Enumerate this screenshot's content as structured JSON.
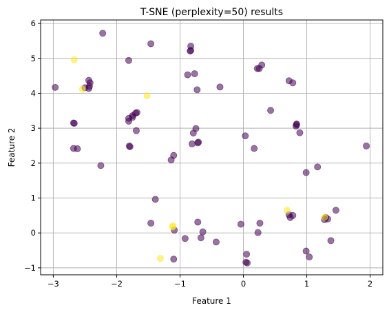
{
  "chart_data": {
    "type": "scatter",
    "title": "T-SNE (perplexity=50) results",
    "xlabel": "Feature 1",
    "ylabel": "Feature 2",
    "xlim": [
      -3.2,
      2.2
    ],
    "ylim": [
      -1.2,
      6.1
    ],
    "xticks": [
      -3,
      -2,
      -1,
      0,
      1,
      2
    ],
    "xtick_labels": [
      "−3",
      "−2",
      "−1",
      "0",
      "1",
      "2"
    ],
    "yticks": [
      -1,
      0,
      1,
      2,
      3,
      4,
      5,
      6
    ],
    "ytick_labels": [
      "−1",
      "0",
      "1",
      "2",
      "3",
      "4",
      "5",
      "6"
    ],
    "grid": true,
    "legend": "none",
    "colors": {
      "class_a": "#440154",
      "class_b": "#fde725"
    },
    "series": [
      {
        "color_key": "class_a",
        "points": [
          [
            -2.22,
            5.72
          ],
          [
            -1.46,
            5.42
          ],
          [
            -0.83,
            5.35
          ],
          [
            -0.83,
            5.23
          ],
          [
            -0.84,
            5.21
          ],
          [
            0.29,
            4.81
          ],
          [
            0.22,
            4.71
          ],
          [
            0.25,
            4.71
          ],
          [
            -1.81,
            4.94
          ],
          [
            -0.77,
            4.56
          ],
          [
            -0.88,
            4.53
          ],
          [
            -2.44,
            4.37
          ],
          [
            -2.42,
            4.3
          ],
          [
            -2.43,
            4.2
          ],
          [
            -2.44,
            4.14
          ],
          [
            -2.5,
            4.16
          ],
          [
            -2.97,
            4.17
          ],
          [
            0.72,
            4.36
          ],
          [
            0.78,
            4.3
          ],
          [
            -0.73,
            4.1
          ],
          [
            -0.37,
            4.18
          ],
          [
            0.43,
            3.51
          ],
          [
            -1.68,
            3.45
          ],
          [
            -1.7,
            3.43
          ],
          [
            -1.75,
            3.36
          ],
          [
            -1.75,
            3.31
          ],
          [
            -1.81,
            3.28
          ],
          [
            -1.81,
            3.2
          ],
          [
            -2.68,
            3.15
          ],
          [
            -2.67,
            3.14
          ],
          [
            0.84,
            3.12
          ],
          [
            0.83,
            3.06
          ],
          [
            0.84,
            3.1
          ],
          [
            -0.75,
            2.99
          ],
          [
            0.89,
            2.87
          ],
          [
            -1.69,
            2.93
          ],
          [
            -0.79,
            2.86
          ],
          [
            0.03,
            2.78
          ],
          [
            -1.8,
            2.49
          ],
          [
            -1.79,
            2.47
          ],
          [
            -0.71,
            2.6
          ],
          [
            -0.72,
            2.58
          ],
          [
            -0.81,
            2.55
          ],
          [
            -2.68,
            2.42
          ],
          [
            -2.62,
            2.41
          ],
          [
            0.17,
            2.42
          ],
          [
            -1.1,
            2.22
          ],
          [
            -1.14,
            2.09
          ],
          [
            1.94,
            2.49
          ],
          [
            -2.25,
            1.93
          ],
          [
            1.17,
            1.89
          ],
          [
            0.99,
            1.73
          ],
          [
            -1.39,
            0.96
          ],
          [
            1.46,
            0.65
          ],
          [
            0.72,
            0.52
          ],
          [
            0.78,
            0.5
          ],
          [
            0.74,
            0.44
          ],
          [
            1.3,
            0.44
          ],
          [
            1.33,
            0.4
          ],
          [
            1.28,
            0.38
          ],
          [
            -1.46,
            0.28
          ],
          [
            -0.72,
            0.31
          ],
          [
            -0.04,
            0.25
          ],
          [
            0.26,
            0.28
          ],
          [
            -1.09,
            0.08
          ],
          [
            -0.64,
            0.03
          ],
          [
            0.23,
            0.01
          ],
          [
            -0.92,
            -0.16
          ],
          [
            -0.67,
            -0.14
          ],
          [
            -0.43,
            -0.26
          ],
          [
            1.38,
            -0.22
          ],
          [
            0.99,
            -0.52
          ],
          [
            0.05,
            -0.61
          ],
          [
            1.04,
            -0.69
          ],
          [
            -1.1,
            -0.75
          ],
          [
            0.04,
            -0.84
          ],
          [
            0.06,
            -0.86
          ]
        ]
      },
      {
        "color_key": "class_b",
        "points": [
          [
            -2.67,
            4.96
          ],
          [
            -2.54,
            4.12
          ],
          [
            -1.52,
            3.93
          ],
          [
            -1.11,
            0.2
          ],
          [
            -1.12,
            0.17
          ],
          [
            -1.31,
            -0.73
          ],
          [
            0.69,
            0.65
          ],
          [
            1.28,
            0.45
          ]
        ]
      }
    ]
  }
}
